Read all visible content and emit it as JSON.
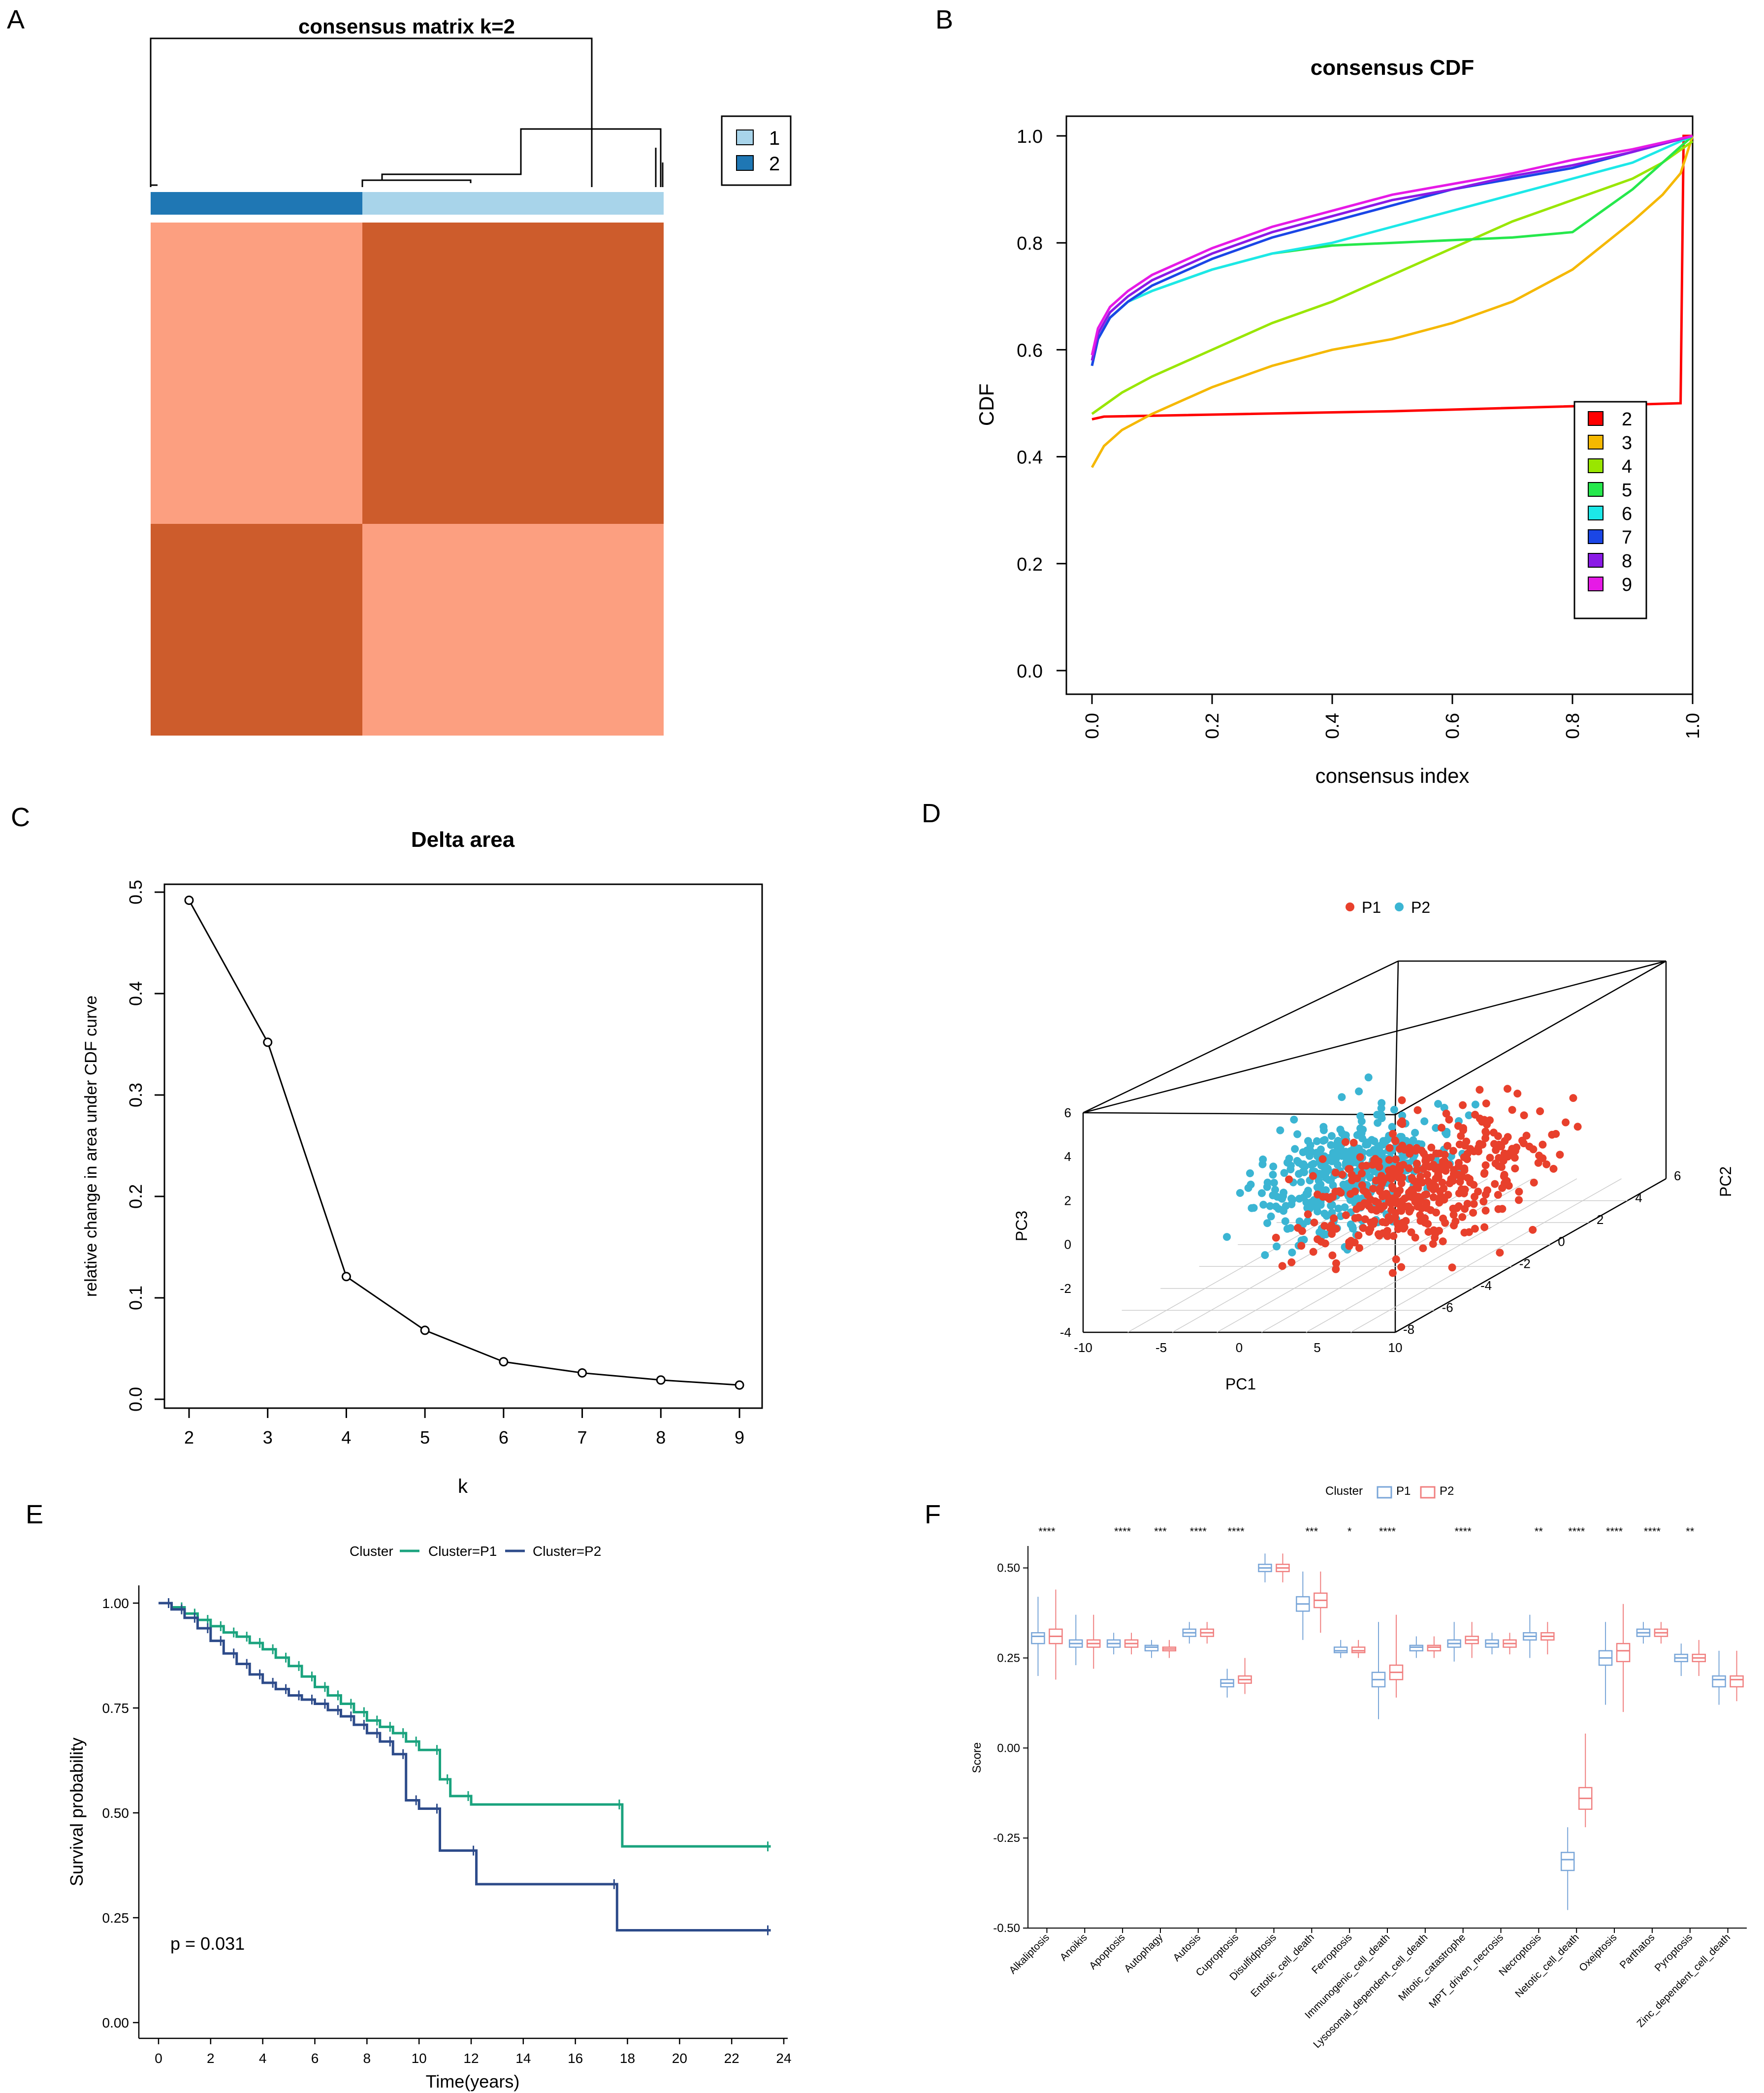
{
  "panel_letters": [
    "A",
    "B",
    "C",
    "D",
    "E",
    "F"
  ],
  "chart_data": [
    {
      "id": "A",
      "type": "heatmap",
      "title": "consensus matrix k=2",
      "legend": [
        "1",
        "2"
      ],
      "legend_colors": [
        "#a8d4ea",
        "#1f77b4"
      ],
      "sample_fraction_cluster2": 0.41,
      "matrix": [
        [
          0.9,
          0.1
        ],
        [
          0.1,
          0.9
        ]
      ],
      "colors": {
        "high": "#cd5c2c",
        "low": "#fc9f80"
      }
    },
    {
      "id": "B",
      "type": "line",
      "title": "consensus CDF",
      "xlabel": "consensus index",
      "ylabel": "CDF",
      "xlim": [
        0,
        1
      ],
      "ylim": [
        0,
        1
      ],
      "xticks": [
        "0.0",
        "0.2",
        "0.4",
        "0.6",
        "0.8",
        "1.0"
      ],
      "yticks": [
        "0.0",
        "0.2",
        "0.4",
        "0.6",
        "0.8",
        "1.0"
      ],
      "legend_labels": [
        "2",
        "3",
        "4",
        "5",
        "6",
        "7",
        "8",
        "9"
      ],
      "colors": [
        "#ff0000",
        "#f5b800",
        "#99e600",
        "#26e84c",
        "#1ce8e8",
        "#1a46e6",
        "#8a1ae6",
        "#e61ae6"
      ],
      "series": [
        {
          "name": "2",
          "x": [
            0,
            0.02,
            0.5,
            0.98,
            0.985,
            1.0
          ],
          "y": [
            0.47,
            0.475,
            0.485,
            0.5,
            1.0,
            1.0
          ]
        },
        {
          "name": "3",
          "x": [
            0,
            0.02,
            0.05,
            0.1,
            0.2,
            0.3,
            0.4,
            0.5,
            0.6,
            0.7,
            0.8,
            0.9,
            0.95,
            0.98,
            1.0
          ],
          "y": [
            0.38,
            0.42,
            0.45,
            0.48,
            0.53,
            0.57,
            0.6,
            0.62,
            0.65,
            0.69,
            0.75,
            0.84,
            0.89,
            0.93,
            1.0
          ]
        },
        {
          "name": "4",
          "x": [
            0,
            0.05,
            0.1,
            0.2,
            0.3,
            0.4,
            0.5,
            0.6,
            0.7,
            0.8,
            0.9,
            0.95,
            1.0
          ],
          "y": [
            0.48,
            0.52,
            0.55,
            0.6,
            0.65,
            0.69,
            0.74,
            0.79,
            0.84,
            0.88,
            0.92,
            0.95,
            0.99
          ]
        },
        {
          "name": "5",
          "x": [
            0,
            0.01,
            0.03,
            0.06,
            0.1,
            0.2,
            0.3,
            0.4,
            0.5,
            0.6,
            0.7,
            0.8,
            0.85,
            0.9,
            0.95,
            1.0
          ],
          "y": [
            0.57,
            0.62,
            0.66,
            0.69,
            0.71,
            0.75,
            0.78,
            0.795,
            0.8,
            0.805,
            0.81,
            0.82,
            0.86,
            0.9,
            0.95,
            1.0
          ]
        },
        {
          "name": "6",
          "x": [
            0,
            0.01,
            0.03,
            0.06,
            0.1,
            0.2,
            0.3,
            0.4,
            0.5,
            0.6,
            0.7,
            0.8,
            0.9,
            1.0
          ],
          "y": [
            0.57,
            0.62,
            0.66,
            0.69,
            0.71,
            0.75,
            0.78,
            0.8,
            0.83,
            0.86,
            0.89,
            0.92,
            0.95,
            1.0
          ]
        },
        {
          "name": "7",
          "x": [
            0,
            0.01,
            0.03,
            0.06,
            0.1,
            0.2,
            0.3,
            0.4,
            0.5,
            0.6,
            0.7,
            0.8,
            0.9,
            1.0
          ],
          "y": [
            0.57,
            0.62,
            0.66,
            0.69,
            0.72,
            0.77,
            0.81,
            0.84,
            0.87,
            0.9,
            0.92,
            0.94,
            0.97,
            1.0
          ]
        },
        {
          "name": "8",
          "x": [
            0,
            0.01,
            0.03,
            0.06,
            0.1,
            0.2,
            0.3,
            0.4,
            0.5,
            0.6,
            0.7,
            0.8,
            0.9,
            1.0
          ],
          "y": [
            0.58,
            0.63,
            0.67,
            0.7,
            0.73,
            0.78,
            0.82,
            0.85,
            0.88,
            0.9,
            0.925,
            0.945,
            0.97,
            1.0
          ]
        },
        {
          "name": "9",
          "x": [
            0,
            0.01,
            0.03,
            0.06,
            0.1,
            0.2,
            0.3,
            0.4,
            0.5,
            0.6,
            0.7,
            0.8,
            0.9,
            1.0
          ],
          "y": [
            0.59,
            0.64,
            0.68,
            0.71,
            0.74,
            0.79,
            0.83,
            0.86,
            0.89,
            0.91,
            0.93,
            0.955,
            0.975,
            1.0
          ]
        }
      ]
    },
    {
      "id": "C",
      "type": "line",
      "title": "Delta area",
      "xlabel": "k",
      "ylabel": "relative change in area under CDF curve",
      "xlim": [
        2,
        9
      ],
      "ylim": [
        0,
        0.5
      ],
      "xticks": [
        "2",
        "3",
        "4",
        "5",
        "6",
        "7",
        "8",
        "9"
      ],
      "yticks": [
        "0.0",
        "0.1",
        "0.2",
        "0.3",
        "0.4",
        "0.5"
      ],
      "x": [
        2,
        3,
        4,
        5,
        6,
        7,
        8,
        9
      ],
      "y": [
        0.492,
        0.352,
        0.121,
        0.068,
        0.037,
        0.026,
        0.019,
        0.014
      ]
    },
    {
      "id": "D",
      "type": "scatter",
      "subtype": "3d-pca",
      "legend": [
        "P1",
        "P2"
      ],
      "colors": {
        "P1": "#e8402c",
        "P2": "#3bb5d3"
      },
      "xlabel": "PC1",
      "ylabel": "PC2",
      "zlabel": "PC3",
      "xlim": [
        -10,
        10
      ],
      "ylim": [
        -8,
        6
      ],
      "zlim": [
        -4,
        6
      ],
      "xticks": [
        "-10",
        "-5",
        "0",
        "5",
        "10"
      ],
      "yticks": [
        "-8",
        "-6",
        "-4",
        "-2",
        "0",
        "2",
        "4",
        "6"
      ],
      "zticks": [
        "-4",
        "-2",
        "0",
        "2",
        "4",
        "6"
      ],
      "n_points_per_group": 420,
      "note": "P1 centered around PC1 ~ 3, P2 centered around PC1 ~ -1, both spread over PC3 0-5"
    },
    {
      "id": "E",
      "type": "line",
      "subtype": "kaplan-meier",
      "legend_title": "Cluster",
      "legend": [
        "Cluster=P1",
        "Cluster=P2"
      ],
      "colors": {
        "P1": "#1aa37e",
        "P2": "#2d4b8a"
      },
      "xlabel": "Time(years)",
      "ylabel": "Survival probability",
      "xlim": [
        0,
        24
      ],
      "ylim": [
        0,
        1
      ],
      "xticks": [
        "0",
        "2",
        "4",
        "6",
        "8",
        "10",
        "12",
        "14",
        "16",
        "18",
        "20",
        "22",
        "24"
      ],
      "yticks": [
        "0.00",
        "0.25",
        "0.50",
        "0.75",
        "1.00"
      ],
      "annotation": "p = 0.031",
      "series": [
        {
          "name": "Cluster=P1",
          "x": [
            0,
            0.5,
            1,
            1.5,
            2,
            2.5,
            3,
            3.5,
            4,
            4.5,
            5,
            5.5,
            6,
            6.5,
            7,
            7.5,
            8,
            8.5,
            9,
            9.5,
            10,
            10.8,
            11.2,
            12,
            17.8,
            23.5
          ],
          "y": [
            1.0,
            0.99,
            0.975,
            0.96,
            0.945,
            0.93,
            0.92,
            0.905,
            0.89,
            0.87,
            0.85,
            0.825,
            0.8,
            0.78,
            0.76,
            0.74,
            0.72,
            0.705,
            0.69,
            0.67,
            0.65,
            0.58,
            0.54,
            0.52,
            0.42,
            0.42
          ]
        },
        {
          "name": "Cluster=P2",
          "x": [
            0,
            0.5,
            1,
            1.5,
            2,
            2.5,
            3,
            3.5,
            4,
            4.5,
            5,
            5.5,
            6,
            6.5,
            7,
            7.5,
            8,
            8.5,
            9,
            9.5,
            10,
            10.8,
            12.2,
            17.6,
            23.5
          ],
          "y": [
            1.0,
            0.985,
            0.965,
            0.94,
            0.91,
            0.88,
            0.855,
            0.83,
            0.81,
            0.795,
            0.78,
            0.77,
            0.76,
            0.745,
            0.73,
            0.71,
            0.69,
            0.67,
            0.64,
            0.53,
            0.51,
            0.41,
            0.33,
            0.22,
            0.22
          ]
        }
      ]
    },
    {
      "id": "F",
      "type": "box",
      "legend_title": "Cluster",
      "legend": [
        "P1",
        "P2"
      ],
      "colors": {
        "P1": "#7aa6d8",
        "P2": "#f08080"
      },
      "ylabel": "Score",
      "ylim": [
        -0.5,
        0.55
      ],
      "yticks": [
        "-0.50",
        "-0.25",
        "0.00",
        "0.25",
        "0.50"
      ],
      "categories": [
        "Alkaliptosis",
        "Anoikis",
        "Apoptosis",
        "Autophagy",
        "Autosis",
        "Cuproptosis",
        "Disulfidptosis",
        "Entotic_cell_death",
        "Ferroptosis",
        "Immunogenic_cell_death",
        "Lysosomal_dependent_cell_death",
        "Mitotic_catastrophe",
        "MPT_driven_necrosis",
        "Necroptosis",
        "Netotic_cell_death",
        "Oxeiptosis",
        "Parthatos",
        "Pyroptosis",
        "Zinc_dependent_cell_death"
      ],
      "significance": [
        "****",
        "",
        "****",
        "***",
        "****",
        "****",
        "",
        "***",
        "*",
        "****",
        "",
        "****",
        "",
        "**",
        "****",
        "****",
        "****",
        "**",
        ""
      ],
      "series": [
        {
          "name": "P1",
          "medians": [
            0.31,
            0.29,
            0.29,
            0.28,
            0.32,
            0.18,
            0.5,
            0.4,
            0.27,
            0.19,
            0.28,
            0.29,
            0.29,
            0.31,
            -0.31,
            0.25,
            0.32,
            0.25,
            0.19
          ],
          "q1": [
            0.29,
            0.28,
            0.28,
            0.27,
            0.31,
            0.17,
            0.49,
            0.38,
            0.265,
            0.17,
            0.27,
            0.28,
            0.28,
            0.3,
            -0.34,
            0.23,
            0.31,
            0.24,
            0.17
          ],
          "q3": [
            0.32,
            0.3,
            0.3,
            0.285,
            0.33,
            0.19,
            0.51,
            0.42,
            0.28,
            0.21,
            0.285,
            0.3,
            0.3,
            0.32,
            -0.29,
            0.27,
            0.33,
            0.26,
            0.2
          ],
          "min": [
            0.2,
            0.23,
            0.26,
            0.25,
            0.29,
            0.14,
            0.46,
            0.3,
            0.25,
            0.08,
            0.25,
            0.24,
            0.26,
            0.25,
            -0.45,
            0.12,
            0.29,
            0.2,
            0.12
          ],
          "max": [
            0.42,
            0.37,
            0.32,
            0.3,
            0.35,
            0.22,
            0.54,
            0.49,
            0.3,
            0.35,
            0.31,
            0.35,
            0.32,
            0.37,
            -0.22,
            0.35,
            0.35,
            0.29,
            0.27
          ]
        },
        {
          "name": "P2",
          "medians": [
            0.31,
            0.29,
            0.29,
            0.275,
            0.32,
            0.19,
            0.5,
            0.41,
            0.27,
            0.21,
            0.28,
            0.3,
            0.29,
            0.31,
            -0.14,
            0.27,
            0.32,
            0.25,
            0.19
          ],
          "q1": [
            0.29,
            0.28,
            0.28,
            0.27,
            0.31,
            0.18,
            0.49,
            0.39,
            0.265,
            0.19,
            0.27,
            0.29,
            0.28,
            0.3,
            -0.17,
            0.24,
            0.31,
            0.24,
            0.17
          ],
          "q3": [
            0.33,
            0.3,
            0.3,
            0.28,
            0.33,
            0.2,
            0.51,
            0.43,
            0.28,
            0.23,
            0.285,
            0.31,
            0.3,
            0.32,
            -0.11,
            0.29,
            0.33,
            0.26,
            0.2
          ],
          "min": [
            0.19,
            0.22,
            0.26,
            0.25,
            0.29,
            0.15,
            0.46,
            0.32,
            0.25,
            0.14,
            0.25,
            0.25,
            0.26,
            0.26,
            -0.22,
            0.1,
            0.29,
            0.2,
            0.13
          ],
          "max": [
            0.44,
            0.37,
            0.32,
            0.3,
            0.35,
            0.25,
            0.54,
            0.49,
            0.3,
            0.37,
            0.31,
            0.35,
            0.32,
            0.35,
            0.04,
            0.4,
            0.35,
            0.3,
            0.27
          ]
        }
      ]
    }
  ]
}
